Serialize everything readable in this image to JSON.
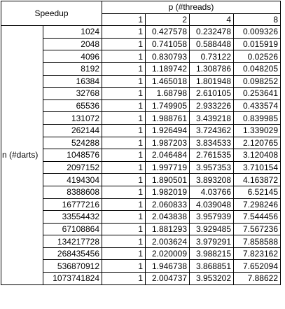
{
  "table": {
    "corner_label": "Speedup",
    "col_group_label": "p (#threads)",
    "row_group_label": "n (#darts)",
    "threads": [
      "1",
      "2",
      "4",
      "8"
    ],
    "rows": [
      {
        "n": "1024",
        "values": [
          "1",
          "0.427578",
          "0.232478",
          "0.009326"
        ]
      },
      {
        "n": "2048",
        "values": [
          "1",
          "0.741058",
          "0.588448",
          "0.015919"
        ]
      },
      {
        "n": "4096",
        "values": [
          "1",
          "0.830793",
          "0.73122",
          "0.02526"
        ]
      },
      {
        "n": "8192",
        "values": [
          "1",
          "1.189742",
          "1.308786",
          "0.048205"
        ]
      },
      {
        "n": "16384",
        "values": [
          "1",
          "1.465018",
          "1.801948",
          "0.098252"
        ]
      },
      {
        "n": "32768",
        "values": [
          "1",
          "1.68798",
          "2.610105",
          "0.253641"
        ]
      },
      {
        "n": "65536",
        "values": [
          "1",
          "1.749905",
          "2.933226",
          "0.433574"
        ]
      },
      {
        "n": "131072",
        "values": [
          "1",
          "1.988761",
          "3.439218",
          "0.839985"
        ]
      },
      {
        "n": "262144",
        "values": [
          "1",
          "1.926494",
          "3.724362",
          "1.339029"
        ]
      },
      {
        "n": "524288",
        "values": [
          "1",
          "1.987203",
          "3.834533",
          "2.120765"
        ]
      },
      {
        "n": "1048576",
        "values": [
          "1",
          "2.046484",
          "2.761535",
          "3.120408"
        ]
      },
      {
        "n": "2097152",
        "values": [
          "1",
          "1.997719",
          "3.957353",
          "3.710154"
        ]
      },
      {
        "n": "4194304",
        "values": [
          "1",
          "1.890501",
          "3.893208",
          "4.163872"
        ]
      },
      {
        "n": "8388608",
        "values": [
          "1",
          "1.982019",
          "4.03766",
          "6.52145"
        ]
      },
      {
        "n": "16777216",
        "values": [
          "1",
          "2.060833",
          "4.039048",
          "7.298246"
        ]
      },
      {
        "n": "33554432",
        "values": [
          "1",
          "2.043838",
          "3.957939",
          "7.544456"
        ]
      },
      {
        "n": "67108864",
        "values": [
          "1",
          "1.881293",
          "3.929485",
          "7.567236"
        ]
      },
      {
        "n": "134217728",
        "values": [
          "1",
          "2.003624",
          "3.979291",
          "7.858588"
        ]
      },
      {
        "n": "268435456",
        "values": [
          "1",
          "2.020009",
          "3.988215",
          "7.823162"
        ]
      },
      {
        "n": "536870912",
        "values": [
          "1",
          "1.946738",
          "3.868851",
          "7.652094"
        ]
      },
      {
        "n": "1073741824",
        "values": [
          "1",
          "2.004737",
          "3.953202",
          "7.88622"
        ]
      }
    ]
  }
}
